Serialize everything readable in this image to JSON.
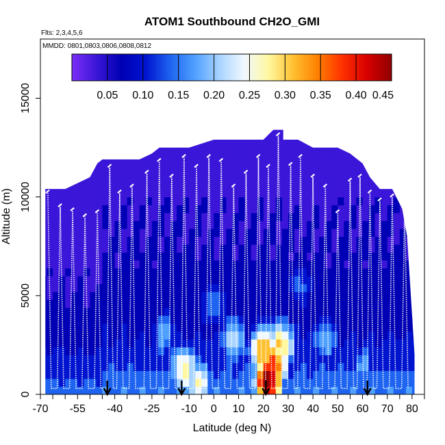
{
  "chart_data": {
    "type": "heatmap",
    "title": "ATOM1 Southbound CH2O_GMI",
    "flights_note": "Flts: 2,3,4,5,6",
    "dates_note": "MMDD: 0801,0803,0806,0808,0812",
    "xlabel": "Latitude (deg N)",
    "ylabel": "Altitude (m)",
    "xlim": [
      -70,
      85
    ],
    "ylim": [
      0,
      18000
    ],
    "x_ticks": [
      -70,
      -55,
      -40,
      -25,
      -10,
      0,
      10,
      20,
      30,
      40,
      50,
      60,
      70,
      80
    ],
    "x_minor_ticks": [
      -65,
      -60,
      -50,
      -45,
      -35,
      -30,
      -20,
      -15,
      -5,
      5,
      15,
      25,
      35,
      45,
      55,
      65,
      75,
      85
    ],
    "y_ticks": [
      0,
      5000,
      10000,
      15000
    ],
    "colorbar": {
      "range": [
        0.0,
        0.45
      ],
      "ticks": [
        0.05,
        0.1,
        0.15,
        0.2,
        0.25,
        0.3,
        0.35,
        0.4,
        0.45
      ],
      "tick_labels": [
        "0.05",
        "0.10",
        "0.15",
        "0.20",
        "0.25",
        "0.30",
        "0.35",
        "0.40",
        "0.45"
      ],
      "colors": [
        "#7b2ff7",
        "#3b16d8",
        "#0000b4",
        "#0014d0",
        "#1e64f0",
        "#4fa0ff",
        "#a8d4ff",
        "#f0f8ff",
        "#fff8a0",
        "#ffc030",
        "#ff8000",
        "#ff3000",
        "#d80000",
        "#900000"
      ]
    },
    "envelope_top": [
      [
        -68,
        10400
      ],
      [
        -63,
        10400
      ],
      [
        -60,
        10400
      ],
      [
        -55,
        10700
      ],
      [
        -50,
        11000
      ],
      [
        -47,
        11700
      ],
      [
        -45,
        11900
      ],
      [
        -30,
        11900
      ],
      [
        -25,
        12200
      ],
      [
        -22,
        12500
      ],
      [
        -10,
        12500
      ],
      [
        0,
        12900
      ],
      [
        10,
        12900
      ],
      [
        20,
        12900
      ],
      [
        24,
        13400
      ],
      [
        28,
        13400
      ],
      [
        28,
        12900
      ],
      [
        34,
        12900
      ],
      [
        40,
        12500
      ],
      [
        50,
        12500
      ],
      [
        55,
        12200
      ],
      [
        60,
        11700
      ],
      [
        63,
        11000
      ],
      [
        67,
        10400
      ],
      [
        72,
        10400
      ],
      [
        76,
        9400
      ],
      [
        78,
        8000
      ],
      [
        79,
        6000
      ],
      [
        80,
        4000
      ],
      [
        81,
        2000
      ],
      [
        81,
        0
      ]
    ],
    "hotspots": [
      {
        "lat": 22,
        "alt": 700,
        "value": 0.45
      },
      {
        "lat": 24,
        "alt": 1500,
        "value": 0.38
      },
      {
        "lat": 20,
        "alt": 2200,
        "value": 0.33
      },
      {
        "lat": -12,
        "alt": 1300,
        "value": 0.28
      },
      {
        "lat": -6,
        "alt": 600,
        "value": 0.26
      },
      {
        "lat": 27,
        "alt": 2500,
        "value": 0.3
      },
      {
        "lat": 8,
        "alt": 2800,
        "value": 0.22
      },
      {
        "lat": -20,
        "alt": 3000,
        "value": 0.18
      },
      {
        "lat": 45,
        "alt": 2800,
        "value": 0.19
      },
      {
        "lat": 60,
        "alt": 1500,
        "value": 0.17
      },
      {
        "lat": 0,
        "alt": 4500,
        "value": 0.16
      },
      {
        "lat": 35,
        "alt": 5500,
        "value": 0.14
      }
    ],
    "profiles": [
      {
        "lat": -67,
        "top": 10200
      },
      {
        "lat": -62,
        "top": 9500
      },
      {
        "lat": -57,
        "top": 9300
      },
      {
        "lat": -52,
        "top": 9000
      },
      {
        "lat": -47,
        "top": 9200
      },
      {
        "lat": -42,
        "top": 11500
      },
      {
        "lat": -38,
        "top": 10200
      },
      {
        "lat": -33,
        "top": 10500
      },
      {
        "lat": -27,
        "top": 11200
      },
      {
        "lat": -22,
        "top": 11800
      },
      {
        "lat": -17,
        "top": 11000
      },
      {
        "lat": -12,
        "top": 12000
      },
      {
        "lat": -7,
        "top": 11500
      },
      {
        "lat": -2,
        "top": 12000
      },
      {
        "lat": 3,
        "top": 11800
      },
      {
        "lat": 8,
        "top": 10500
      },
      {
        "lat": 13,
        "top": 11200
      },
      {
        "lat": 18,
        "top": 12000
      },
      {
        "lat": 22,
        "top": 11500
      },
      {
        "lat": 26,
        "top": 13100
      },
      {
        "lat": 31,
        "top": 11600
      },
      {
        "lat": 35,
        "top": 12000
      },
      {
        "lat": 40,
        "top": 11000
      },
      {
        "lat": 45,
        "top": 10500
      },
      {
        "lat": 50,
        "top": 9200
      },
      {
        "lat": 55,
        "top": 10800
      },
      {
        "lat": 59,
        "top": 11000
      },
      {
        "lat": 63,
        "top": 10200
      },
      {
        "lat": 67,
        "top": 9800
      },
      {
        "lat": 72,
        "top": 10000
      },
      {
        "lat": 77,
        "top": 9500
      }
    ],
    "arrows_lat": [
      -43,
      -13,
      21,
      62
    ]
  }
}
